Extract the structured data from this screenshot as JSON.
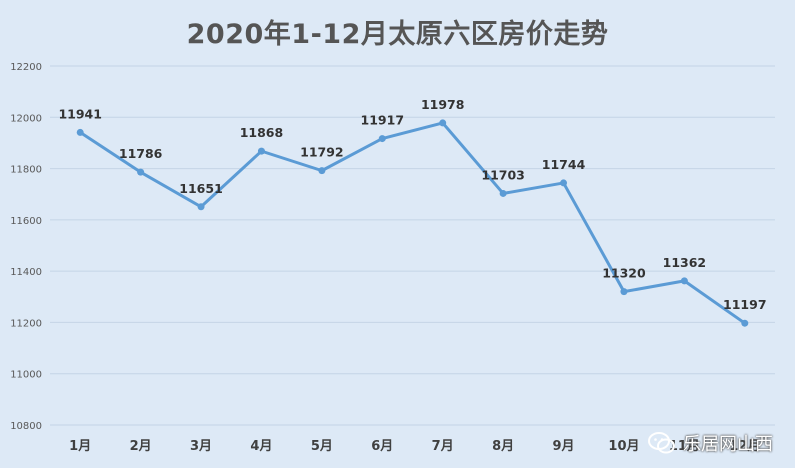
{
  "chart_data": {
    "type": "line",
    "title": "2020年1-12月太原六区房价走势",
    "categories": [
      "1月",
      "2月",
      "3月",
      "4月",
      "5月",
      "6月",
      "7月",
      "8月",
      "9月",
      "10月",
      "11月",
      "12月"
    ],
    "series": [
      {
        "values": [
          11941,
          11786,
          11651,
          11868,
          11792,
          11917,
          11978,
          11703,
          11744,
          11320,
          11362,
          11197
        ]
      }
    ],
    "ylim": [
      10800,
      12200
    ],
    "yticks": [
      10800,
      11000,
      11200,
      11400,
      11600,
      11800,
      12000,
      12200
    ],
    "grid": true,
    "data_labels": true,
    "line_color": "#5b9bd5"
  },
  "watermark": {
    "text": "乐居网山西",
    "icon": "wechat-icon"
  }
}
